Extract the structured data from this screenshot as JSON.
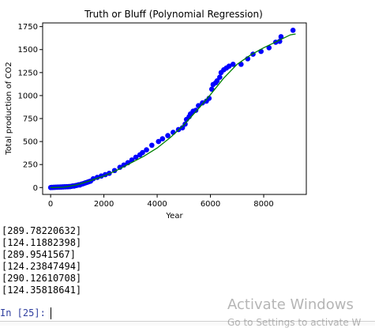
{
  "chart_data": {
    "type": "scatter",
    "title": "Truth or Bluff (Polynomial Regression)",
    "xlabel": "Year",
    "ylabel": "Total production of CO2",
    "xlim": [
      -300,
      9600
    ],
    "ylim": [
      -75,
      1790
    ],
    "xticks": [
      0,
      2000,
      4000,
      6000,
      8000
    ],
    "yticks": [
      0,
      250,
      500,
      750,
      1000,
      1250,
      1500,
      1750
    ],
    "grid": false,
    "series": [
      {
        "kind": "scatter",
        "color": "#0000ff",
        "points": [
          [
            0,
            0
          ],
          [
            40,
            2
          ],
          [
            80,
            1
          ],
          [
            120,
            3
          ],
          [
            160,
            2
          ],
          [
            200,
            4
          ],
          [
            240,
            3
          ],
          [
            280,
            5
          ],
          [
            320,
            4
          ],
          [
            360,
            6
          ],
          [
            400,
            5
          ],
          [
            440,
            7
          ],
          [
            480,
            6
          ],
          [
            520,
            8
          ],
          [
            560,
            7
          ],
          [
            600,
            9
          ],
          [
            640,
            8
          ],
          [
            680,
            11
          ],
          [
            720,
            10
          ],
          [
            760,
            12
          ],
          [
            800,
            15
          ],
          [
            840,
            17
          ],
          [
            880,
            16
          ],
          [
            920,
            20
          ],
          [
            960,
            22
          ],
          [
            1000,
            25
          ],
          [
            1050,
            30
          ],
          [
            1100,
            28
          ],
          [
            1150,
            36
          ],
          [
            1200,
            40
          ],
          [
            1250,
            45
          ],
          [
            1300,
            50
          ],
          [
            1350,
            55
          ],
          [
            1400,
            60
          ],
          [
            1450,
            65
          ],
          [
            1500,
            70
          ],
          [
            1600,
            95
          ],
          [
            1750,
            110
          ],
          [
            1900,
            125
          ],
          [
            2050,
            140
          ],
          [
            2200,
            155
          ],
          [
            2400,
            185
          ],
          [
            2600,
            220
          ],
          [
            2750,
            245
          ],
          [
            2900,
            270
          ],
          [
            3050,
            300
          ],
          [
            3200,
            330
          ],
          [
            3350,
            355
          ],
          [
            3450,
            380
          ],
          [
            3600,
            410
          ],
          [
            3800,
            460
          ],
          [
            4050,
            500
          ],
          [
            4200,
            530
          ],
          [
            4400,
            565
          ],
          [
            4600,
            600
          ],
          [
            4800,
            630
          ],
          [
            4950,
            650
          ],
          [
            5050,
            690
          ],
          [
            5100,
            740
          ],
          [
            5200,
            770
          ],
          [
            5250,
            800
          ],
          [
            5350,
            830
          ],
          [
            5450,
            840
          ],
          [
            5550,
            890
          ],
          [
            5700,
            920
          ],
          [
            5850,
            940
          ],
          [
            5950,
            970
          ],
          [
            6050,
            1070
          ],
          [
            6100,
            1120
          ],
          [
            6200,
            1140
          ],
          [
            6250,
            1160
          ],
          [
            6350,
            1200
          ],
          [
            6400,
            1250
          ],
          [
            6500,
            1280
          ],
          [
            6600,
            1300
          ],
          [
            6700,
            1320
          ],
          [
            6850,
            1340
          ],
          [
            7150,
            1340
          ],
          [
            7400,
            1400
          ],
          [
            7600,
            1450
          ],
          [
            7900,
            1480
          ],
          [
            8200,
            1520
          ],
          [
            8450,
            1580
          ],
          [
            8600,
            1590
          ],
          [
            8650,
            1640
          ],
          [
            9100,
            1710
          ]
        ]
      },
      {
        "kind": "line",
        "color": "#008000",
        "points": [
          [
            0,
            0
          ],
          [
            500,
            3
          ],
          [
            1000,
            30
          ],
          [
            1500,
            75
          ],
          [
            2000,
            125
          ],
          [
            2500,
            190
          ],
          [
            3000,
            265
          ],
          [
            3500,
            340
          ],
          [
            4000,
            430
          ],
          [
            4500,
            545
          ],
          [
            5000,
            680
          ],
          [
            5500,
            840
          ],
          [
            6000,
            1010
          ],
          [
            6500,
            1190
          ],
          [
            7000,
            1340
          ],
          [
            7500,
            1440
          ],
          [
            8000,
            1520
          ],
          [
            8500,
            1590
          ],
          [
            9000,
            1660
          ],
          [
            9200,
            1670
          ]
        ]
      }
    ]
  },
  "output": {
    "lines": [
      "[289.78220632]",
      "[124.11882398]",
      "[289.9541567]",
      "[124.23847494]",
      "[290.12610708]",
      "[124.35818641]"
    ],
    "prompt": "In [25]:"
  },
  "watermark": {
    "title": "Activate Windows",
    "subtitle": "Go to Settings to activate W"
  }
}
